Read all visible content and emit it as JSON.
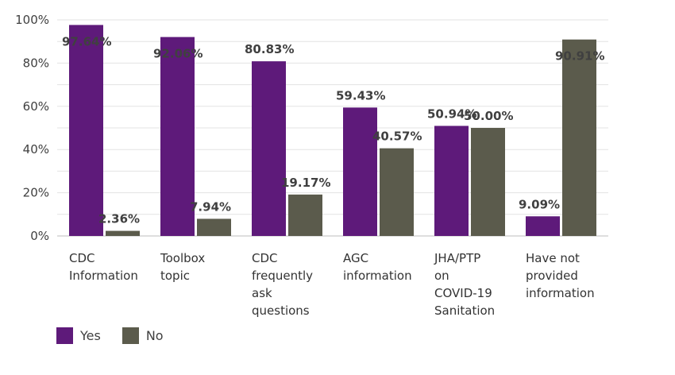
{
  "chart_data": {
    "type": "bar",
    "categories": [
      [
        "CDC",
        "Information"
      ],
      [
        "Toolbox",
        "topic"
      ],
      [
        "CDC",
        "frequently",
        "ask",
        "questions"
      ],
      [
        "AGC",
        "information"
      ],
      [
        "JHA/PTP",
        "on",
        "COVID-19",
        "Sanitation"
      ],
      [
        "Have not",
        "provided",
        "information"
      ]
    ],
    "series": [
      {
        "name": "Yes",
        "color": "#5e1a7a",
        "values": [
          97.64,
          92.06,
          80.83,
          59.43,
          50.94,
          9.09
        ],
        "labels": [
          "97.64%",
          "92.06%",
          "80.83%",
          "59.43%",
          "50.94%",
          "9.09%"
        ]
      },
      {
        "name": "No",
        "color": "#5b5b4c",
        "values": [
          2.36,
          7.94,
          19.17,
          40.57,
          50.0,
          90.91
        ],
        "labels": [
          "2.36%",
          "7.94%",
          "19.17%",
          "40.57%",
          "50.00%",
          "90.91%"
        ]
      }
    ],
    "yticks": [
      "0%",
      "20%",
      "40%",
      "60%",
      "80%",
      "100%"
    ],
    "ylim": [
      0,
      100
    ],
    "grid": true,
    "legend_position": "bottom-left",
    "title": "",
    "xlabel": "",
    "ylabel": ""
  }
}
